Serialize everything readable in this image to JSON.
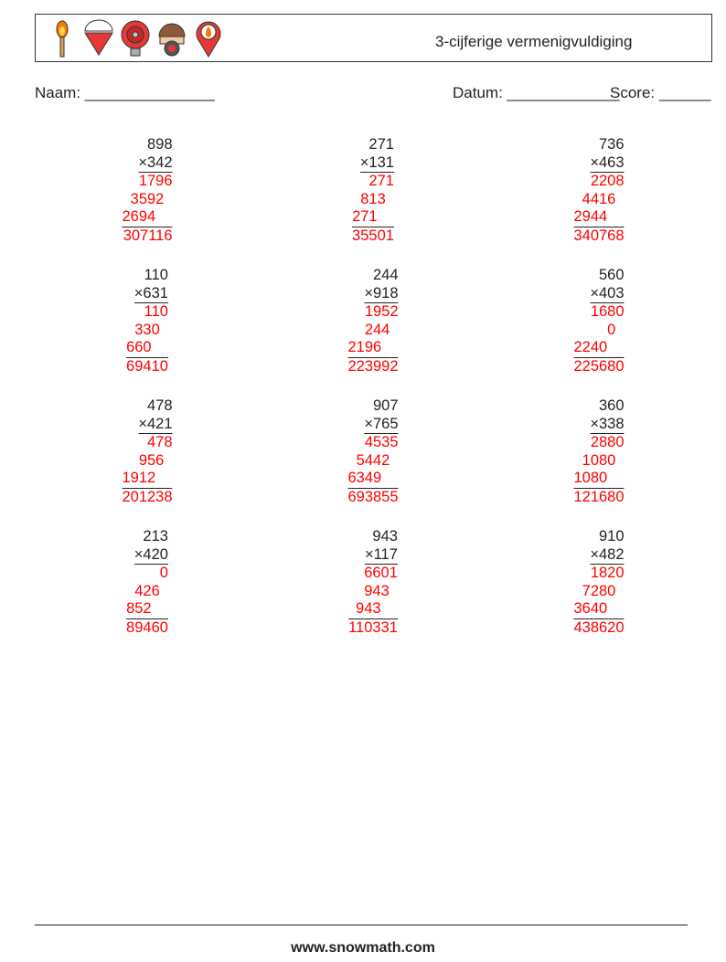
{
  "header": {
    "title": "3-cijferige vermenigvuldiging",
    "icons": [
      "match-icon",
      "bucket-icon",
      "alarm-bell-icon",
      "gas-mask-icon",
      "fire-location-pin-icon"
    ]
  },
  "form": {
    "name_label": "Naam: _______________",
    "date_label": "Datum: _____________",
    "score_label": "Score: ______"
  },
  "colors": {
    "answer": "#ff0000",
    "text": "#222222"
  },
  "problems": [
    {
      "a": "898",
      "b": "×342",
      "partials": [
        "1796",
        "3592",
        "2694"
      ],
      "answer": "307116"
    },
    {
      "a": "271",
      "b": "×131",
      "partials": [
        "271",
        "813",
        "271"
      ],
      "answer": "35501"
    },
    {
      "a": "736",
      "b": "×463",
      "partials": [
        "2208",
        "4416",
        "2944"
      ],
      "answer": "340768"
    },
    {
      "a": "110",
      "b": "×631",
      "partials": [
        "110",
        "330",
        "660"
      ],
      "answer": "69410"
    },
    {
      "a": "244",
      "b": "×918",
      "partials": [
        "1952",
        "244",
        "2196"
      ],
      "answer": "223992"
    },
    {
      "a": "560",
      "b": "×403",
      "partials": [
        "1680",
        "0",
        "2240"
      ],
      "answer": "225680"
    },
    {
      "a": "478",
      "b": "×421",
      "partials": [
        "478",
        "956",
        "1912"
      ],
      "answer": "201238"
    },
    {
      "a": "907",
      "b": "×765",
      "partials": [
        "4535",
        "5442",
        "6349"
      ],
      "answer": "693855"
    },
    {
      "a": "360",
      "b": "×338",
      "partials": [
        "2880",
        "1080",
        "1080"
      ],
      "answer": "121680"
    },
    {
      "a": "213",
      "b": "×420",
      "partials": [
        "0",
        "426",
        "852"
      ],
      "answer": "89460"
    },
    {
      "a": "943",
      "b": "×117",
      "partials": [
        "6601",
        "943",
        "943"
      ],
      "answer": "110331"
    },
    {
      "a": "910",
      "b": "×482",
      "partials": [
        "1820",
        "7280",
        "3640"
      ],
      "answer": "438620"
    }
  ],
  "footer": {
    "url": "www.snowmath.com"
  }
}
